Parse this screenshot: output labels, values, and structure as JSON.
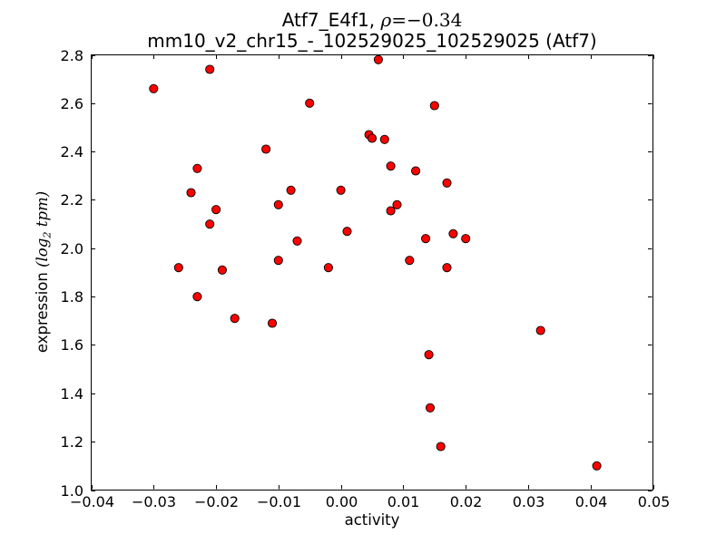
{
  "chart_data": {
    "type": "scatter",
    "title": {
      "line1_main": "Atf7_E4f1, ",
      "line1_math_var": "ρ",
      "line1_math_rest": "=−0.34",
      "line2": "mm10_v2_chr15_-_102529025_102529025 (Atf7)"
    },
    "xlabel": "activity",
    "ylabel": {
      "prefix": "expression ",
      "math_pre": "(log",
      "math_sub": "2",
      "math_post": " tpm)"
    },
    "xlim": [
      -0.04,
      0.05
    ],
    "ylim": [
      1.0,
      2.8
    ],
    "grid": false,
    "legend": "none",
    "xticks": [
      {
        "v": -0.04,
        "label": "−0.04"
      },
      {
        "v": -0.03,
        "label": "−0.03"
      },
      {
        "v": -0.02,
        "label": "−0.02"
      },
      {
        "v": -0.01,
        "label": "−0.01"
      },
      {
        "v": 0.0,
        "label": "0.00"
      },
      {
        "v": 0.01,
        "label": "0.01"
      },
      {
        "v": 0.02,
        "label": "0.02"
      },
      {
        "v": 0.03,
        "label": "0.03"
      },
      {
        "v": 0.04,
        "label": "0.04"
      },
      {
        "v": 0.05,
        "label": "0.05"
      }
    ],
    "yticks": [
      {
        "v": 1.0,
        "label": "1.0"
      },
      {
        "v": 1.2,
        "label": "1.2"
      },
      {
        "v": 1.4,
        "label": "1.4"
      },
      {
        "v": 1.6,
        "label": "1.6"
      },
      {
        "v": 1.8,
        "label": "1.8"
      },
      {
        "v": 2.0,
        "label": "2.0"
      },
      {
        "v": 2.2,
        "label": "2.2"
      },
      {
        "v": 2.4,
        "label": "2.4"
      },
      {
        "v": 2.6,
        "label": "2.6"
      },
      {
        "v": 2.8,
        "label": "2.8"
      }
    ],
    "marker": {
      "shape": "circle",
      "color": "#ff0000",
      "edge_color": "#000000",
      "radius": 4.6
    },
    "axis_color": "#000000",
    "background_color": "#ffffff",
    "points": [
      [
        0.006,
        2.78
      ],
      [
        -0.021,
        2.74
      ],
      [
        -0.03,
        2.66
      ],
      [
        -0.005,
        2.6
      ],
      [
        0.015,
        2.59
      ],
      [
        0.0045,
        2.47
      ],
      [
        0.005,
        2.455
      ],
      [
        0.007,
        2.45
      ],
      [
        -0.012,
        2.41
      ],
      [
        0.008,
        2.34
      ],
      [
        -0.023,
        2.33
      ],
      [
        0.012,
        2.32
      ],
      [
        0.017,
        2.27
      ],
      [
        0.0,
        2.24
      ],
      [
        -0.008,
        2.24
      ],
      [
        -0.024,
        2.23
      ],
      [
        0.009,
        2.18
      ],
      [
        -0.01,
        2.18
      ],
      [
        -0.02,
        2.16
      ],
      [
        0.008,
        2.155
      ],
      [
        -0.021,
        2.1
      ],
      [
        0.001,
        2.07
      ],
      [
        -0.007,
        2.03
      ],
      [
        0.0136,
        2.04
      ],
      [
        0.018,
        2.06
      ],
      [
        0.02,
        2.04
      ],
      [
        0.011,
        1.95
      ],
      [
        -0.01,
        1.95
      ],
      [
        0.017,
        1.92
      ],
      [
        -0.002,
        1.92
      ],
      [
        -0.026,
        1.92
      ],
      [
        -0.019,
        1.91
      ],
      [
        -0.023,
        1.8
      ],
      [
        -0.017,
        1.71
      ],
      [
        -0.011,
        1.69
      ],
      [
        0.032,
        1.66
      ],
      [
        0.0141,
        1.56
      ],
      [
        0.0143,
        1.34
      ],
      [
        0.016,
        1.18
      ],
      [
        0.041,
        1.1
      ]
    ]
  }
}
